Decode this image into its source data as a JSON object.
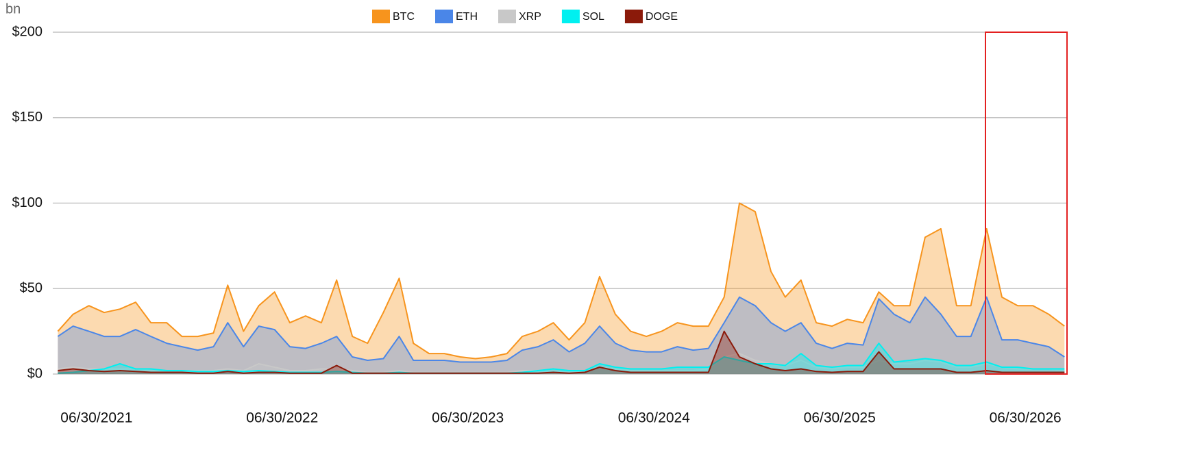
{
  "chart_data": {
    "type": "area",
    "y_unit": "bn",
    "x": [
      "2021-04-15",
      "2021-05-15",
      "2021-06-15",
      "2021-07-15",
      "2021-08-15",
      "2021-09-15",
      "2021-10-15",
      "2021-11-15",
      "2021-12-15",
      "2022-01-15",
      "2022-02-15",
      "2022-03-15",
      "2022-04-15",
      "2022-05-15",
      "2022-06-15",
      "2022-07-15",
      "2022-08-15",
      "2022-09-15",
      "2022-10-15",
      "2022-11-15",
      "2022-12-15",
      "2023-01-15",
      "2023-02-15",
      "2023-03-15",
      "2023-04-15",
      "2023-05-15",
      "2023-06-15",
      "2023-07-15",
      "2023-08-15",
      "2023-09-15",
      "2023-10-15",
      "2023-11-15",
      "2023-12-15",
      "2024-01-15",
      "2024-02-15",
      "2024-03-15",
      "2024-04-15",
      "2024-05-15",
      "2024-06-15",
      "2024-07-15",
      "2024-08-15",
      "2024-09-15",
      "2024-10-15",
      "2024-11-15",
      "2024-12-15",
      "2025-01-15",
      "2025-02-15",
      "2025-03-15",
      "2025-04-15",
      "2025-05-15",
      "2025-06-15",
      "2025-07-15",
      "2025-08-15",
      "2025-09-15",
      "2025-10-15",
      "2025-11-15",
      "2025-12-15",
      "2026-01-15",
      "2026-02-15",
      "2026-03-15",
      "2026-04-15",
      "2026-05-15",
      "2026-06-15",
      "2026-07-15",
      "2026-08-15",
      "2026-09-15"
    ],
    "series": [
      {
        "name": "BTC",
        "color": "#f7941d",
        "values": [
          25,
          35,
          40,
          36,
          38,
          42,
          30,
          30,
          22,
          22,
          24,
          52,
          25,
          40,
          48,
          30,
          34,
          30,
          55,
          22,
          18,
          36,
          56,
          18,
          12,
          12,
          10,
          9,
          10,
          12,
          22,
          25,
          30,
          20,
          30,
          57,
          35,
          25,
          22,
          25,
          30,
          28,
          28,
          45,
          100,
          95,
          60,
          45,
          55,
          30,
          28,
          32,
          30,
          48,
          40,
          40,
          80,
          85,
          40,
          40,
          85,
          45,
          40,
          40,
          35,
          28
        ]
      },
      {
        "name": "ETH",
        "color": "#4a86e8",
        "values": [
          22,
          28,
          25,
          22,
          22,
          26,
          22,
          18,
          16,
          14,
          16,
          30,
          16,
          28,
          26,
          16,
          15,
          18,
          22,
          10,
          8,
          9,
          22,
          8,
          8,
          8,
          7,
          7,
          7,
          8,
          14,
          16,
          20,
          13,
          18,
          28,
          18,
          14,
          13,
          13,
          16,
          14,
          15,
          30,
          45,
          40,
          30,
          25,
          30,
          18,
          15,
          18,
          17,
          44,
          35,
          30,
          45,
          35,
          22,
          22,
          45,
          20,
          20,
          18,
          16,
          10
        ]
      },
      {
        "name": "XRP",
        "color": "#c8c8c8",
        "values": [
          3,
          4,
          3,
          3,
          3,
          3,
          2,
          2,
          2,
          2,
          2,
          3,
          2,
          6,
          4,
          2,
          2,
          3,
          3,
          2,
          1,
          1,
          2,
          1,
          1,
          1,
          1,
          1,
          1,
          1,
          2,
          2,
          3,
          2,
          2,
          4,
          3,
          2,
          2,
          2,
          2,
          2,
          3,
          10,
          12,
          8,
          6,
          5,
          8,
          4,
          3,
          4,
          4,
          8,
          6,
          6,
          8,
          7,
          4,
          4,
          6,
          4,
          3,
          3,
          3,
          2
        ]
      },
      {
        "name": "SOL",
        "color": "#00f0f0",
        "values": [
          0.5,
          1,
          2,
          3,
          6,
          3,
          3,
          2,
          2,
          1.5,
          1.5,
          2,
          1.5,
          2,
          1.5,
          1,
          1,
          1,
          1.5,
          1,
          0.5,
          0.5,
          1,
          0.5,
          0.5,
          0.5,
          0.5,
          0.5,
          0.5,
          0.5,
          1,
          2,
          3,
          2,
          2,
          6,
          4,
          3,
          3,
          3,
          4,
          4,
          4,
          10,
          8,
          6,
          6,
          5,
          12,
          5,
          4,
          5,
          5,
          18,
          7,
          8,
          9,
          8,
          5,
          5,
          7,
          4,
          4,
          3,
          3,
          3
        ]
      },
      {
        "name": "DOGE",
        "color": "#8b1a0a",
        "values": [
          2,
          3,
          2,
          1.5,
          2,
          1.5,
          1,
          1,
          1,
          0.5,
          0.5,
          1.5,
          0.5,
          1,
          1,
          0.5,
          0.5,
          0.5,
          5,
          0.5,
          0.5,
          0.5,
          0.5,
          0.5,
          0.5,
          0.5,
          0.5,
          0.5,
          0.5,
          0.5,
          0.5,
          0.5,
          1,
          0.5,
          1,
          4,
          2,
          1,
          1,
          1,
          1,
          1,
          1,
          25,
          10,
          6,
          3,
          2,
          3,
          1.5,
          1,
          1.5,
          1.5,
          13,
          3,
          3,
          3,
          3,
          1,
          1,
          2,
          1,
          1,
          1,
          1,
          1
        ]
      }
    ],
    "xlim": [
      "2021-04-05",
      "2026-09-20"
    ],
    "xticks": [
      {
        "value": "2021-06-30",
        "label": "06/30/2021"
      },
      {
        "value": "2022-06-30",
        "label": "06/30/2022"
      },
      {
        "value": "2023-06-30",
        "label": "06/30/2023"
      },
      {
        "value": "2024-06-30",
        "label": "06/30/2024"
      },
      {
        "value": "2025-06-30",
        "label": "06/30/2025"
      },
      {
        "value": "2026-06-30",
        "label": "06/30/2026"
      }
    ],
    "ylim": [
      0,
      200
    ],
    "yticks": [
      {
        "value": 0,
        "label": "$0"
      },
      {
        "value": 50,
        "label": "$50"
      },
      {
        "value": 100,
        "label": "$100"
      },
      {
        "value": 150,
        "label": "$150"
      },
      {
        "value": 200,
        "label": "$200"
      }
    ],
    "grid": true,
    "legend": "top"
  }
}
